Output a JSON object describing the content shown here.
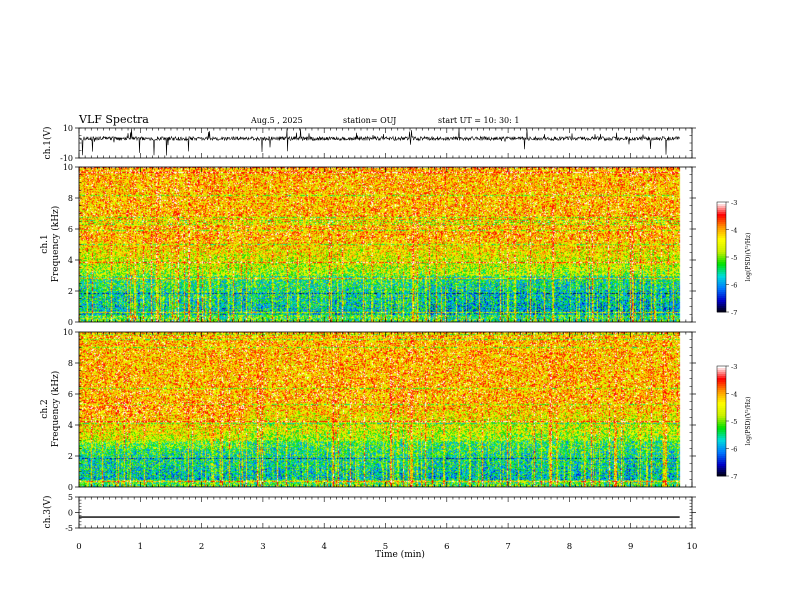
{
  "header": {
    "title": "VLF Spectra",
    "date": "Aug.5 , 2025",
    "station": "station= OUJ",
    "start": "start UT = 10: 30: 1"
  },
  "chart_data": [
    {
      "type": "line",
      "panel": "ch1-waveform",
      "ylabel": "ch.1(V)",
      "ylim": [
        -10,
        10
      ],
      "yticks": [
        "10",
        "-10"
      ],
      "xlim": [
        0,
        10
      ],
      "note_values": "noisy waveform centred near 3 V with spikes reaching 10 and -10",
      "x": [
        0,
        1,
        2,
        3,
        4,
        5,
        6,
        7,
        8,
        9,
        9.8
      ],
      "y": [
        3,
        2,
        3,
        3,
        2,
        3,
        3,
        2,
        3,
        3,
        3
      ]
    },
    {
      "type": "heatmap",
      "panel": "ch1-spectrogram",
      "ylabel": "ch.1\nFrequency (kHz)",
      "ylim": [
        0,
        10
      ],
      "yticks": [
        "0",
        "2",
        "4",
        "6",
        "8",
        "10"
      ],
      "xlim": [
        0,
        10
      ],
      "data_end_min": 9.8,
      "colorbar": {
        "label": "log(PSD)(V²/Hz)",
        "range": [
          -7,
          -3
        ],
        "ticks": [
          "-3",
          "-4",
          "-5",
          "-6",
          "-7"
        ],
        "colors": [
          "#000000",
          "#0000c8",
          "#0078ff",
          "#00dcdc",
          "#00e100",
          "#c8f000",
          "#ffff00",
          "#ff9600",
          "#ff0000",
          "#ffffff"
        ]
      }
    },
    {
      "type": "heatmap",
      "panel": "ch2-spectrogram",
      "ylabel": "ch.2\nFrequency (kHz)",
      "ylim": [
        0,
        10
      ],
      "yticks": [
        "0",
        "2",
        "4",
        "6",
        "8",
        "10"
      ],
      "xlim": [
        0,
        10
      ],
      "data_end_min": 9.8,
      "colorbar": {
        "label": "log(PSD)(V²/Hz)",
        "range": [
          -7,
          -3
        ],
        "ticks": [
          "-3",
          "-4",
          "-5",
          "-6",
          "-7"
        ],
        "colors": [
          "#000000",
          "#0000c8",
          "#0078ff",
          "#00dcdc",
          "#00e100",
          "#c8f000",
          "#ffff00",
          "#ff9600",
          "#ff0000",
          "#ffffff"
        ]
      }
    },
    {
      "type": "line",
      "panel": "ch3-waveform",
      "ylabel": "ch.3(V)",
      "ylim": [
        -5,
        5
      ],
      "yticks": [
        "5",
        "0",
        "-5"
      ],
      "xlim": [
        0,
        10
      ],
      "x": [
        0,
        9.8
      ],
      "y": [
        -1.5,
        -1.5
      ]
    }
  ],
  "xaxis": {
    "label": "Time (min)",
    "ticks": [
      "0",
      "1",
      "2",
      "3",
      "4",
      "5",
      "6",
      "7",
      "8",
      "9",
      "10"
    ]
  }
}
